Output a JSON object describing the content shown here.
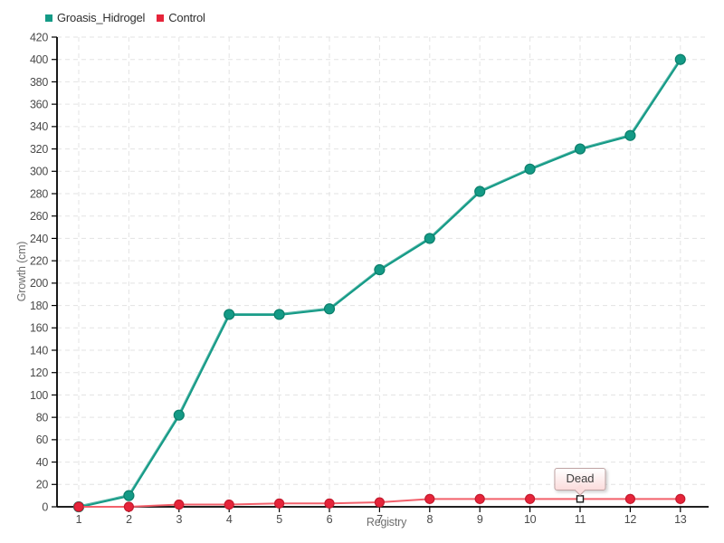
{
  "chart_data": {
    "type": "line",
    "title": "",
    "xlabel": "Registry",
    "ylabel": "Growth (cm)",
    "x": [
      1,
      2,
      3,
      4,
      5,
      6,
      7,
      8,
      9,
      10,
      11,
      12,
      13
    ],
    "ylim": [
      0,
      420
    ],
    "ytick_step": 20,
    "grid": true,
    "legend_position": "top-left",
    "series": [
      {
        "name": "Groasis_Hidrogel",
        "color": "#149a86",
        "line_color": "#149a86",
        "marker_stroke": "#0b7f6b",
        "values": [
          0,
          10,
          82,
          172,
          172,
          177,
          212,
          240,
          282,
          302,
          320,
          332,
          400
        ]
      },
      {
        "name": "Control",
        "color": "#e6243a",
        "line_color": "#f2606b",
        "marker_stroke": "#c41b2e",
        "values": [
          0,
          0,
          2,
          2,
          3,
          3,
          4,
          7,
          7,
          7,
          7,
          7,
          7
        ]
      }
    ],
    "annotations": [
      {
        "label": "Dead",
        "series": "Control",
        "x": 11,
        "marker": "white-square"
      }
    ]
  },
  "colors": {
    "grid": "#e3e3e3",
    "axis": "#000000",
    "tick_text": "#4a4a4a",
    "axis_title": "#6e6e6e"
  }
}
